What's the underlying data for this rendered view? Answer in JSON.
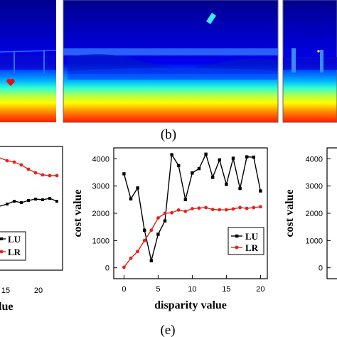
{
  "panel_top_caption": "(b)",
  "panel_bottom_caption": "(e)",
  "depth_images": {
    "colormap": [
      "#00008f",
      "#0000ff",
      "#0080ff",
      "#00ffff",
      "#80ff80",
      "#ffff00",
      "#ff8000",
      "#ff0000"
    ]
  },
  "left_partial_chart": {
    "tick_labels_x": [
      "15",
      "20"
    ],
    "xlabel_visible": "lue",
    "legend": [
      {
        "name": "LU",
        "color": "#000000"
      },
      {
        "name": "LR",
        "color": "#e8211a"
      }
    ]
  },
  "right_partial_chart": {
    "ylabel": "cost value",
    "tick_labels_y": [
      "0",
      "1000",
      "2000",
      "3000",
      "4000"
    ]
  },
  "chart_data": [
    {
      "type": "line",
      "title": "",
      "xlabel": "disparity value",
      "ylabel": "cost value",
      "xlim": [
        -1.5,
        21
      ],
      "ylim": [
        -400,
        4400
      ],
      "xticks": [
        0,
        5,
        10,
        15,
        20
      ],
      "yticks": [
        0,
        1000,
        2000,
        3000,
        4000
      ],
      "x": [
        0,
        1,
        2,
        3,
        4,
        5,
        6,
        7,
        8,
        9,
        10,
        11,
        12,
        13,
        14,
        15,
        16,
        17,
        18,
        19,
        20
      ],
      "series": [
        {
          "name": "LU",
          "color": "#000000",
          "marker": "square",
          "values": [
            3450,
            2530,
            2930,
            1380,
            260,
            1230,
            1720,
            4150,
            3750,
            2500,
            3480,
            3640,
            4170,
            3320,
            3960,
            3060,
            4020,
            2910,
            4070,
            4060,
            2820
          ]
        },
        {
          "name": "LR",
          "color": "#e8211a",
          "marker": "circle",
          "values": [
            20,
            350,
            600,
            1000,
            1380,
            1830,
            2000,
            2020,
            2120,
            2070,
            2170,
            2190,
            2210,
            2140,
            2130,
            2130,
            2160,
            2210,
            2180,
            2210,
            2240
          ]
        }
      ],
      "legend_position": "bottom-right"
    }
  ]
}
